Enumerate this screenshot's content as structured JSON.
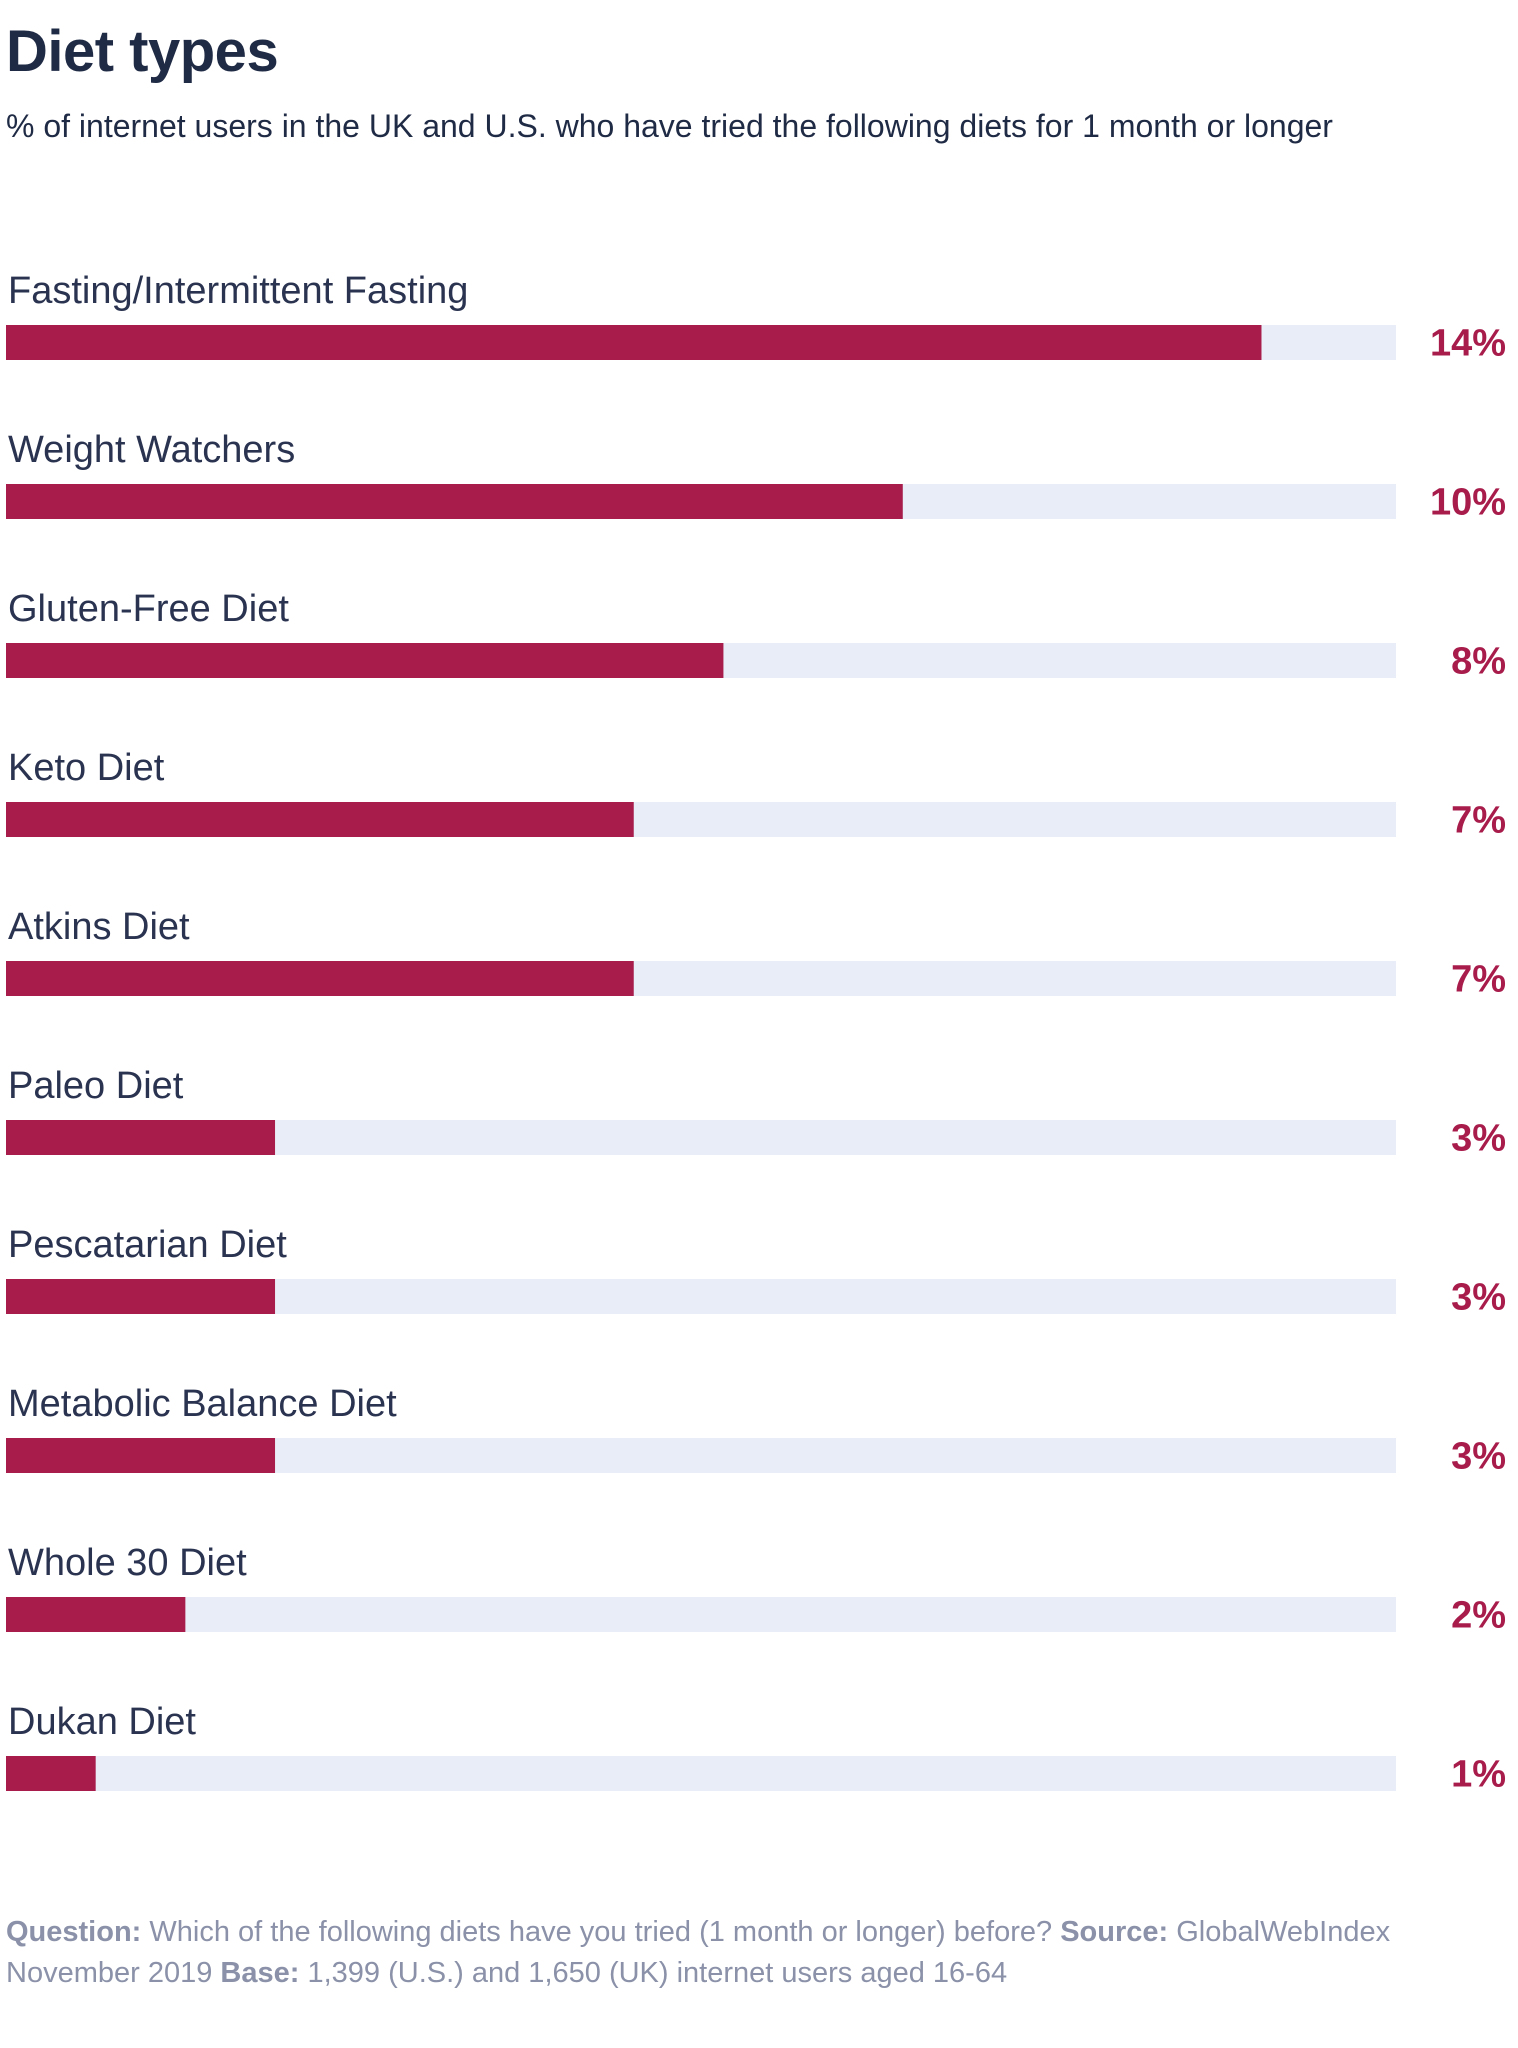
{
  "header": {
    "title": "Diet types",
    "subtitle": "% of internet users in the UK and U.S. who have tried the following diets for 1 month or longer"
  },
  "colors": {
    "bar": "#a81c4b",
    "track": "#e9edf7",
    "value_text": "#a81c4b",
    "label_text": "#2a3350"
  },
  "chart_data": {
    "type": "bar",
    "orientation": "horizontal",
    "title": "Diet types",
    "subtitle": "% of internet users in the UK and U.S. who have tried the following diets for 1 month or longer",
    "categories": [
      "Fasting/Intermittent Fasting",
      "Weight Watchers",
      "Gluten-Free Diet",
      "Keto Diet",
      "Atkins Diet",
      "Paleo Diet",
      "Pescatarian Diet",
      "Metabolic Balance Diet",
      "Whole 30 Diet",
      "Dukan Diet"
    ],
    "values": [
      14,
      10,
      8,
      7,
      7,
      3,
      3,
      3,
      2,
      1
    ],
    "value_labels": [
      "14%",
      "10%",
      "8%",
      "7%",
      "7%",
      "3%",
      "3%",
      "3%",
      "2%",
      "1%"
    ],
    "xlim": [
      0,
      15.5
    ],
    "xlabel": "",
    "ylabel": "",
    "grid": false
  },
  "footer": {
    "question_label": "Question:",
    "question_text": "Which of the following diets have you tried (1 month or longer) before?",
    "source_label": "Source:",
    "source_text": "GlobalWebIndex November 2019",
    "base_label": "Base:",
    "base_text": "1,399 (U.S.) and 1,650 (UK) internet users aged 16-64"
  }
}
